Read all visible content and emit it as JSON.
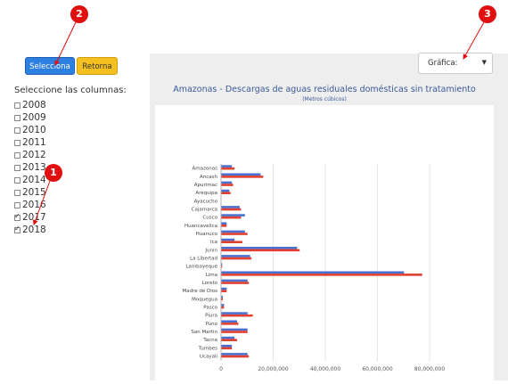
{
  "toolbar": {
    "select_label": "Selecciona",
    "retorna_label": "Retorna"
  },
  "chart_select": {
    "value": "Gráfica:"
  },
  "columns": {
    "title": "Seleccione las columnas:",
    "items": [
      {
        "label": "2008",
        "checked": false
      },
      {
        "label": "2009",
        "checked": false
      },
      {
        "label": "2010",
        "checked": false
      },
      {
        "label": "2011",
        "checked": false
      },
      {
        "label": "2012",
        "checked": false
      },
      {
        "label": "2013",
        "checked": false
      },
      {
        "label": "2014",
        "checked": false
      },
      {
        "label": "2015",
        "checked": false
      },
      {
        "label": "2016",
        "checked": false
      },
      {
        "label": "2017",
        "checked": true
      },
      {
        "label": "2018",
        "checked": true
      }
    ]
  },
  "markers": [
    "1",
    "2",
    "3"
  ],
  "chart_data": {
    "type": "bar",
    "orientation": "horizontal",
    "title": "Amazonas - Descargas de aguas residuales domésticas sin tratamiento",
    "subtitle": "(Metros cúbicos)",
    "categories": [
      "Amazonas",
      "Ancash",
      "Apurimac",
      "Arequipa",
      "Ayacucho",
      "Cajamarca",
      "Cusco",
      "Huancavelica",
      "Huanuco",
      "Ica",
      "Junin",
      "La Libertad",
      "Lambayeque",
      "Lima",
      "Loreto",
      "Madre de Dios",
      "Moquegua",
      "Pasco",
      "Piura",
      "Puno",
      "San Martin",
      "Tacna",
      "Tumbes",
      "Ucayali"
    ],
    "series": [
      {
        "color": "#4a6fd0",
        "values": [
          4000000,
          15000000,
          4000000,
          3000000,
          0,
          7000000,
          9000000,
          2000000,
          9000000,
          5000000,
          29000000,
          11000000,
          300000,
          70000000,
          10000000,
          2000000,
          500000,
          1000000,
          10000000,
          6000000,
          10000000,
          5000000,
          4000000,
          10000000
        ]
      },
      {
        "color": "#e04030",
        "values": [
          5000000,
          16000000,
          4500000,
          3500000,
          0,
          7500000,
          7500000,
          2000000,
          10000000,
          8000000,
          30000000,
          11500000,
          300000,
          77000000,
          10500000,
          2000000,
          500000,
          1000000,
          12000000,
          6500000,
          10000000,
          6000000,
          4000000,
          10500000
        ]
      }
    ],
    "xlim": [
      0,
      80000000
    ],
    "xticks": [
      "0",
      "20,000,000",
      "40,000,000",
      "60,000,000",
      "80,000,000"
    ],
    "xtick_values": [
      0,
      20000000,
      40000000,
      60000000,
      80000000
    ],
    "grid": true
  }
}
